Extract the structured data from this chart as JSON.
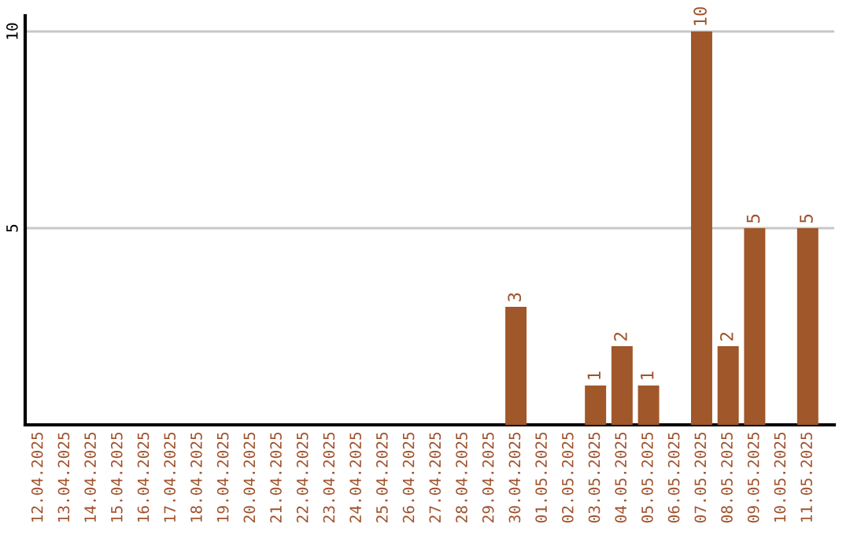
{
  "chart_data": {
    "type": "bar",
    "categories": [
      "12.04.2025",
      "13.04.2025",
      "14.04.2025",
      "15.04.2025",
      "16.04.2025",
      "17.04.2025",
      "18.04.2025",
      "19.04.2025",
      "20.04.2025",
      "21.04.2025",
      "22.04.2025",
      "23.04.2025",
      "24.04.2025",
      "25.04.2025",
      "26.04.2025",
      "27.04.2025",
      "28.04.2025",
      "29.04.2025",
      "30.04.2025",
      "01.05.2025",
      "02.05.2025",
      "03.05.2025",
      "04.05.2025",
      "05.05.2025",
      "06.05.2025",
      "07.05.2025",
      "08.05.2025",
      "09.05.2025",
      "10.05.2025",
      "11.05.2025"
    ],
    "values": [
      0,
      0,
      0,
      0,
      0,
      0,
      0,
      0,
      0,
      0,
      0,
      0,
      0,
      0,
      0,
      0,
      0,
      0,
      3,
      0,
      0,
      1,
      2,
      1,
      0,
      10,
      2,
      5,
      0,
      5
    ],
    "value_labels": [
      null,
      null,
      null,
      null,
      null,
      null,
      null,
      null,
      null,
      null,
      null,
      null,
      null,
      null,
      null,
      null,
      null,
      null,
      "3",
      null,
      null,
      "1",
      "2",
      "1",
      null,
      "10",
      "2",
      "5",
      null,
      "5"
    ],
    "color": "#a0572a",
    "ylim": [
      0,
      10.4
    ],
    "yticks": [
      5,
      10
    ],
    "grid": "y"
  }
}
